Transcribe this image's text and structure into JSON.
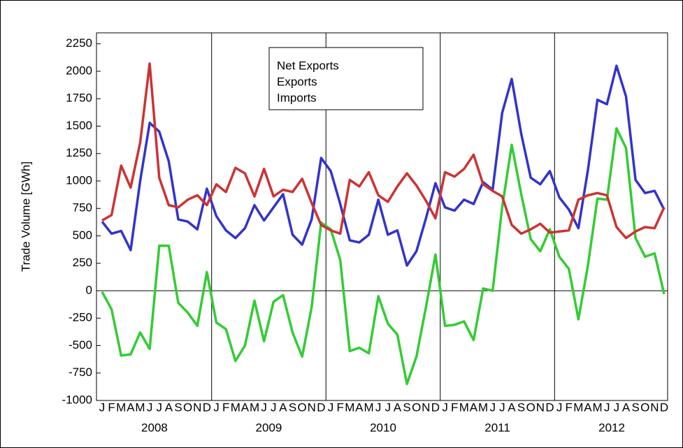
{
  "chart_data": {
    "type": "line",
    "y_label": "Trade Volume [GWh]",
    "categories": [
      "J",
      "F",
      "M",
      "A",
      "M",
      "J",
      "J",
      "A",
      "S",
      "O",
      "N",
      "D",
      "J",
      "F",
      "M",
      "A",
      "M",
      "J",
      "J",
      "A",
      "S",
      "O",
      "N",
      "D",
      "J",
      "F",
      "M",
      "A",
      "M",
      "J",
      "J",
      "A",
      "S",
      "O",
      "N",
      "D",
      "J",
      "F",
      "M",
      "A",
      "M",
      "J",
      "J",
      "A",
      "S",
      "O",
      "N",
      "D",
      "J",
      "F",
      "M",
      "A",
      "M",
      "J",
      "J",
      "A",
      "S",
      "O",
      "N",
      "D"
    ],
    "years": [
      "2008",
      "2009",
      "2010",
      "2011",
      "2012"
    ],
    "ylim": [
      -1000,
      2350
    ],
    "yticks": [
      -1000,
      -750,
      -500,
      -250,
      0,
      250,
      500,
      750,
      1000,
      1250,
      1500,
      1750,
      2000,
      2250
    ],
    "series": [
      {
        "name": "Net Exports",
        "color": "#33cc33",
        "values": [
          -10,
          -170,
          -590,
          -580,
          -380,
          -530,
          410,
          410,
          -110,
          -200,
          -320,
          170,
          -290,
          -350,
          -640,
          -500,
          -90,
          -460,
          -100,
          -40,
          -380,
          -600,
          -150,
          620,
          560,
          280,
          -550,
          -520,
          -570,
          -50,
          -300,
          -400,
          -850,
          -600,
          -150,
          330,
          -320,
          -310,
          -280,
          -450,
          20,
          0,
          760,
          1330,
          880,
          470,
          360,
          560,
          310,
          200,
          -260,
          230,
          840,
          830,
          1480,
          1300,
          480,
          310,
          340,
          -30
        ]
      },
      {
        "name": "Exports",
        "color": "#3333cc",
        "values": [
          630,
          520,
          545,
          370,
          1000,
          1530,
          1450,
          1180,
          650,
          630,
          560,
          930,
          680,
          550,
          480,
          570,
          780,
          640,
          760,
          880,
          510,
          420,
          650,
          1210,
          1090,
          790,
          460,
          440,
          510,
          830,
          510,
          550,
          230,
          360,
          660,
          980,
          760,
          730,
          830,
          790,
          990,
          920,
          1620,
          1930,
          1430,
          1030,
          970,
          1090,
          850,
          740,
          570,
          1100,
          1740,
          1700,
          2050,
          1770,
          1010,
          890,
          910,
          740
        ]
      },
      {
        "name": "Imports",
        "color": "#cc3333",
        "values": [
          640,
          690,
          1140,
          940,
          1350,
          2070,
          1030,
          780,
          760,
          830,
          870,
          780,
          970,
          900,
          1120,
          1070,
          860,
          1110,
          860,
          920,
          900,
          1020,
          800,
          600,
          550,
          520,
          1010,
          950,
          1080,
          870,
          810,
          950,
          1070,
          960,
          820,
          660,
          1080,
          1040,
          1110,
          1240,
          970,
          910,
          860,
          600,
          520,
          560,
          610,
          530,
          540,
          550,
          830,
          870,
          890,
          870,
          580,
          480,
          540,
          580,
          570,
          760
        ]
      }
    ]
  }
}
